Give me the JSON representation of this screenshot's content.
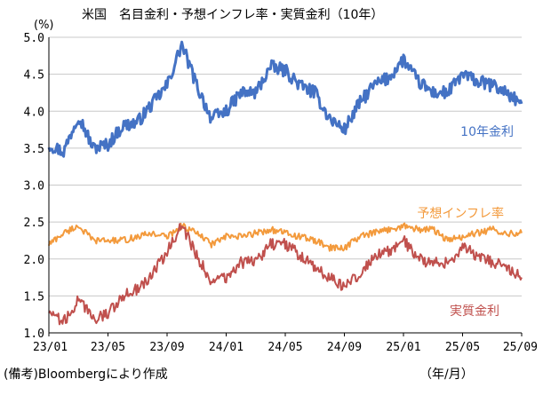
{
  "title": "米国　名目金利・予想インフレ率・実質金利（10年）",
  "y_unit": "(%)",
  "x_unit": "（年/月）",
  "source": "(備考)Bloombergにより作成",
  "colors": {
    "nominal": "#4472c4",
    "breakeven": "#f39a3c",
    "real": "#c0504d",
    "grid": "#c8c8c8",
    "axis": "#000000"
  },
  "chart_data": {
    "type": "line",
    "title": "米国　名目金利・予想インフレ率・実質金利（10年）",
    "ylabel": "(%)",
    "xlabel": "（年/月）",
    "ylim": [
      1.0,
      5.0
    ],
    "yticks": [
      "1.0",
      "1.5",
      "2.0",
      "2.5",
      "3.0",
      "3.5",
      "4.0",
      "4.5",
      "5.0"
    ],
    "xlim": [
      "2023-01",
      "2025-09"
    ],
    "xticks": [
      "23/01",
      "23/05",
      "23/09",
      "24/01",
      "24/05",
      "24/09",
      "25/01",
      "25/05",
      "25/09"
    ],
    "grid": "horizontal",
    "x": [
      "2023-01",
      "2023-02",
      "2023-03",
      "2023-04",
      "2023-05",
      "2023-06",
      "2023-07",
      "2023-08",
      "2023-09",
      "2023-10",
      "2023-11",
      "2023-12",
      "2024-01",
      "2024-02",
      "2024-03",
      "2024-04",
      "2024-05",
      "2024-06",
      "2024-07",
      "2024-08",
      "2024-09",
      "2024-10",
      "2024-11",
      "2024-12",
      "2025-01",
      "2025-02",
      "2025-03",
      "2025-04",
      "2025-05",
      "2025-06",
      "2025-07",
      "2025-08",
      "2025-09"
    ],
    "series": [
      {
        "name": "10年金利",
        "color": "#4472c4",
        "label_position": "right",
        "values": [
          3.55,
          3.45,
          3.95,
          3.5,
          3.55,
          3.8,
          3.85,
          4.1,
          4.35,
          4.9,
          4.35,
          3.9,
          4.0,
          4.25,
          4.25,
          4.6,
          4.55,
          4.35,
          4.25,
          3.9,
          3.75,
          4.1,
          4.35,
          4.45,
          4.7,
          4.4,
          4.25,
          4.25,
          4.5,
          4.4,
          4.35,
          4.25,
          4.1
        ]
      },
      {
        "name": "予想インフレ率",
        "color": "#f39a3c",
        "label_position": "right",
        "values": [
          2.2,
          2.35,
          2.45,
          2.25,
          2.25,
          2.25,
          2.3,
          2.35,
          2.3,
          2.45,
          2.35,
          2.2,
          2.3,
          2.3,
          2.35,
          2.4,
          2.35,
          2.3,
          2.25,
          2.15,
          2.15,
          2.3,
          2.35,
          2.4,
          2.45,
          2.4,
          2.4,
          2.25,
          2.3,
          2.35,
          2.4,
          2.35,
          2.35
        ]
      },
      {
        "name": "実質金利",
        "color": "#c0504d",
        "label_position": "right",
        "values": [
          1.3,
          1.15,
          1.45,
          1.2,
          1.25,
          1.5,
          1.6,
          1.8,
          2.1,
          2.45,
          2.05,
          1.7,
          1.75,
          1.95,
          1.95,
          2.2,
          2.2,
          2.05,
          1.9,
          1.75,
          1.6,
          1.8,
          2.05,
          2.1,
          2.25,
          2.0,
          1.95,
          1.95,
          2.15,
          2.05,
          1.95,
          1.9,
          1.75
        ]
      }
    ]
  }
}
